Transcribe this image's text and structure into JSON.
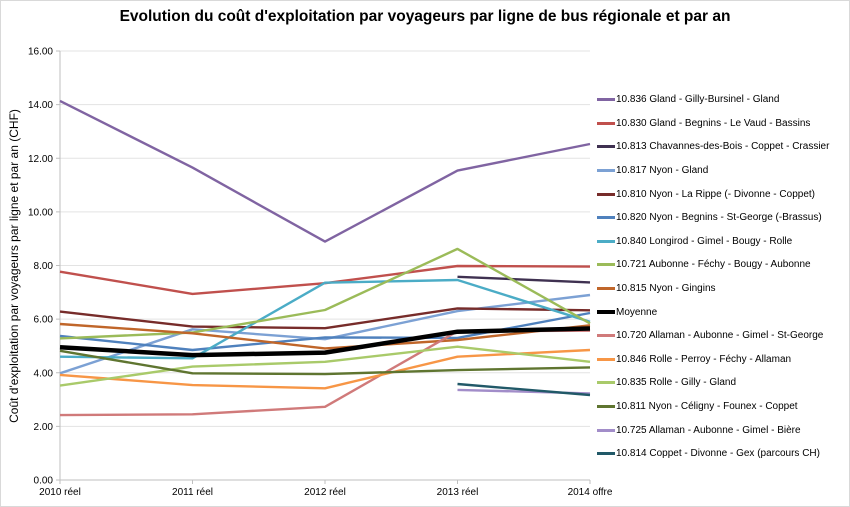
{
  "chart_data": {
    "type": "line",
    "title": "Evolution du coût d'exploitation par voyageurs par ligne de bus régionale et par an",
    "xlabel": "",
    "ylabel": "Coût d'exploitation par voyageurs par ligne et par an (CHF)",
    "ylim": [
      0,
      16
    ],
    "yticks": [
      "0.00",
      "2.00",
      "4.00",
      "6.00",
      "8.00",
      "10.00",
      "12.00",
      "14.00",
      "16.00"
    ],
    "ytick_values": [
      0,
      2,
      4,
      6,
      8,
      10,
      12,
      14,
      16
    ],
    "grid": true,
    "legend_position": "right",
    "categories": [
      "2010 réel",
      "2011 réel",
      "2012 réel",
      "2013 réel",
      "2014 offre"
    ],
    "series": [
      {
        "name": "10.836 Gland - Gilly-Bursinel - Gland",
        "color": "#8064A2",
        "values": [
          14.14,
          11.65,
          8.89,
          11.54,
          12.53
        ]
      },
      {
        "name": "10.830 Gland - Begnins - Le Vaud - Bassins",
        "color": "#C0504D",
        "values": [
          7.77,
          6.94,
          7.34,
          7.98,
          7.96
        ]
      },
      {
        "name": "10.813 Chavannes-des-Bois - Coppet - Crassier",
        "color": "#3F3151",
        "values": [
          null,
          null,
          null,
          7.58,
          7.37
        ]
      },
      {
        "name": "10.817 Nyon - Gland",
        "color": "#7CA1D4",
        "values": [
          3.98,
          5.62,
          5.25,
          6.3,
          6.9
        ]
      },
      {
        "name": "10.810 Nyon - La Rippe (- Divonne - Coppet)",
        "color": "#772C2A",
        "values": [
          6.28,
          5.72,
          5.66,
          6.4,
          6.33
        ]
      },
      {
        "name": "10.820 Nyon - Begnins - St-George (-Brassus)",
        "color": "#4F81BD",
        "values": [
          5.37,
          4.85,
          5.32,
          5.3,
          6.23
        ]
      },
      {
        "name": "10.840 Longirod - Gimel - Bougy - Rolle",
        "color": "#4BACC6",
        "values": [
          4.6,
          4.54,
          7.36,
          7.46,
          5.9
        ]
      },
      {
        "name": "10.721 Aubonne - Féchy - Bougy - Aubonne",
        "color": "#9BBB59",
        "values": [
          5.28,
          5.5,
          6.34,
          8.62,
          5.84
        ]
      },
      {
        "name": "10.815 Nyon - Gingins",
        "color": "#C0662A",
        "values": [
          5.82,
          5.47,
          4.91,
          5.22,
          5.77
        ]
      },
      {
        "name": "Moyenne",
        "color": "#000000",
        "values": [
          4.95,
          4.66,
          4.75,
          5.53,
          5.65
        ],
        "bold": true
      },
      {
        "name": "10.720 Allaman - Aubonne - Gimel - St-George",
        "color": "#D07A7A",
        "values": [
          2.42,
          2.45,
          2.73,
          5.55,
          5.57
        ]
      },
      {
        "name": "10.846 Rolle - Perroy - Féchy - Allaman",
        "color": "#F79646",
        "values": [
          3.92,
          3.54,
          3.42,
          4.6,
          4.85
        ]
      },
      {
        "name": "10.835 Rolle - Gilly - Gland",
        "color": "#A9CA6A",
        "values": [
          3.52,
          4.23,
          4.41,
          4.97,
          4.41
        ]
      },
      {
        "name": "10.811 Nyon - Céligny - Founex - Coppet",
        "color": "#5F7530",
        "values": [
          4.82,
          3.98,
          3.95,
          4.1,
          4.2
        ]
      },
      {
        "name": "10.725 Allaman - Aubonne - Gimel - Bière",
        "color": "#A28DC9",
        "values": [
          null,
          null,
          null,
          3.36,
          3.23
        ]
      },
      {
        "name": "10.814 Coppet - Divonne - Gex (parcours CH)",
        "color": "#215968",
        "values": [
          null,
          null,
          null,
          3.58,
          3.17
        ]
      }
    ]
  }
}
